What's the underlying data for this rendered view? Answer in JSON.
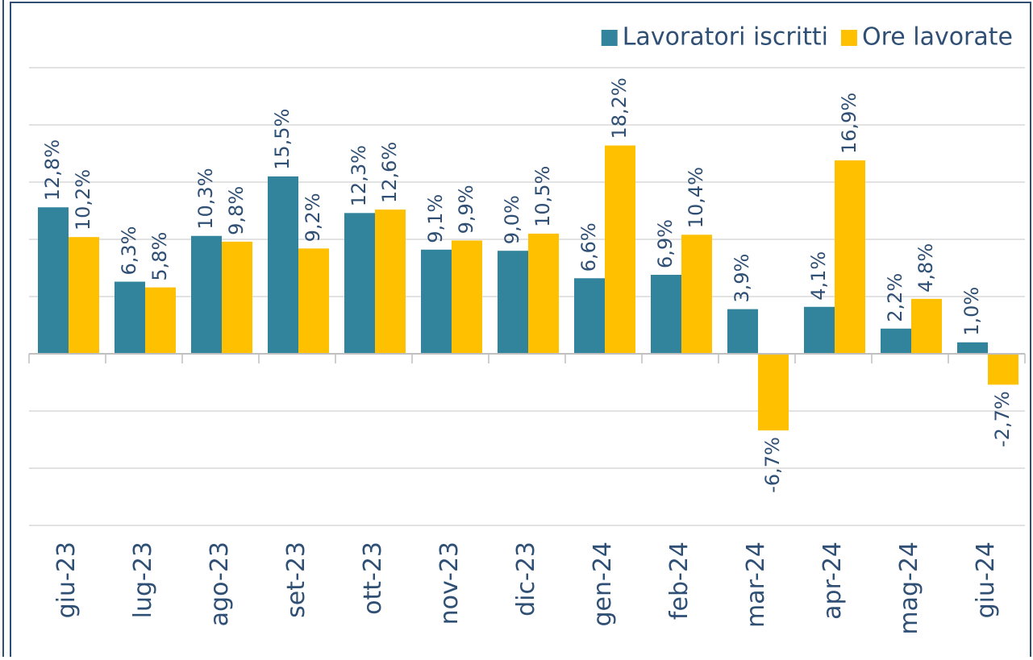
{
  "chart_data": {
    "type": "bar",
    "categories": [
      "giu-23",
      "lug-23",
      "ago-23",
      "set-23",
      "ott-23",
      "nov-23",
      "dic-23",
      "gen-24",
      "feb-24",
      "mar-24",
      "apr-24",
      "mag-24",
      "giu-24"
    ],
    "series": [
      {
        "name": "Lavoratori iscritti",
        "color": "#31849b",
        "values": [
          12.8,
          6.3,
          10.3,
          15.5,
          12.3,
          9.1,
          9.0,
          6.6,
          6.9,
          3.9,
          4.1,
          2.2,
          1.0
        ],
        "value_labels": [
          "12,8%",
          "6,3%",
          "10,3%",
          "15,5%",
          "12,3%",
          "9,1%",
          "9,0%",
          "6,6%",
          "6,9%",
          "3,9%",
          "4,1%",
          "2,2%",
          "1,0%"
        ]
      },
      {
        "name": "Ore lavorate",
        "color": "#ffc000",
        "values": [
          10.2,
          5.8,
          9.8,
          9.2,
          12.6,
          9.9,
          10.5,
          18.2,
          10.4,
          -6.7,
          16.9,
          4.8,
          -2.7
        ],
        "value_labels": [
          "10,2%",
          "5,8%",
          "9,8%",
          "9,2%",
          "12,6%",
          "9,9%",
          "10,5%",
          "18,2%",
          "10,4%",
          "-6,7%",
          "16,9%",
          "4,8%",
          "-2,7%"
        ]
      }
    ],
    "ylim": [
      -15,
      30
    ],
    "yticks": [
      -15,
      -10,
      -5,
      0,
      5,
      10,
      15,
      20,
      25
    ],
    "grid": true,
    "legend": "top-right"
  }
}
